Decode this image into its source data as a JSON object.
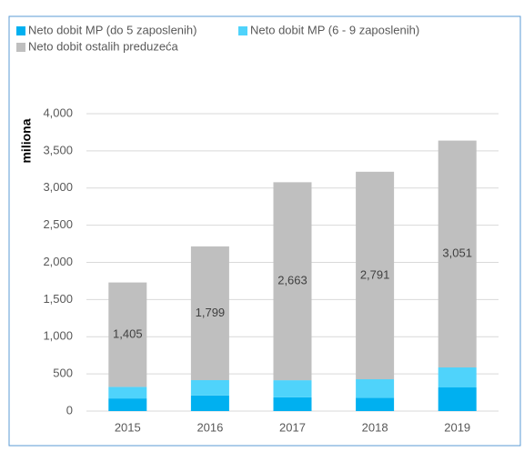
{
  "chart_data": {
    "type": "bar",
    "stacked": true,
    "y_label": "miliona",
    "categories": [
      "2015",
      "2016",
      "2017",
      "2018",
      "2019"
    ],
    "series": [
      {
        "name": "Neto dobit MP (do 5 zaposlenih)",
        "color": "#00b0f0",
        "values": [
          170,
          210,
          185,
          180,
          318
        ]
      },
      {
        "name": "Neto dobit MP (6 - 9 zaposlenih)",
        "color": "#4fd3fb",
        "values": [
          155,
          206,
          230,
          248,
          269
        ]
      },
      {
        "name": "Neto dobit ostalih preduzeća",
        "color": "#bfbfbf",
        "values": [
          1405,
          1799,
          2663,
          2791,
          3051
        ],
        "value_labels": [
          "1,405",
          "1,799",
          "2,663",
          "2,791",
          "3,051"
        ]
      }
    ],
    "ylim": [
      0,
      4000
    ],
    "yticks": [
      0,
      500,
      {
        "value": 1000,
        "label": "1,000"
      },
      {
        "value": 1500,
        "label": "1,500"
      },
      {
        "value": 2000,
        "label": "2,000"
      },
      {
        "value": 2500,
        "label": "2,500"
      },
      {
        "value": 3000,
        "label": "3,000"
      },
      {
        "value": 3500,
        "label": "3,500"
      },
      {
        "value": 4000,
        "label": "4,000"
      }
    ],
    "grid": true
  }
}
